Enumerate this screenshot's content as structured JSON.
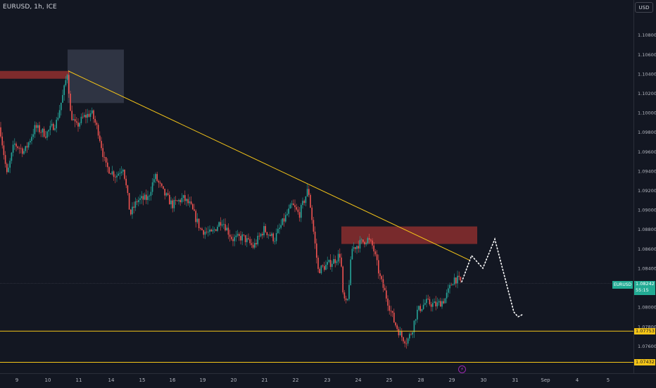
{
  "header": {
    "symbol_title": "EURUSD, 1h, ICE",
    "currency": "USD"
  },
  "symbol_tag": "EURUSD",
  "current_price": {
    "price": "1.08242",
    "countdown": "55:15",
    "value": 1.08242,
    "color": "#22ab94"
  },
  "levels": [
    {
      "label": "1.07753",
      "value": 1.07753,
      "color": "#f5c518"
    },
    {
      "label": "1.07432",
      "value": 1.07432,
      "color": "#f5c518"
    }
  ],
  "price_axis": {
    "ticks": [
      "1.10800",
      "1.10600",
      "1.10400",
      "1.10200",
      "1.10000",
      "1.09800",
      "1.09600",
      "1.09400",
      "1.09200",
      "1.09000",
      "1.08800",
      "1.08600",
      "1.08400",
      "1.08000",
      "1.07800",
      "1.07600"
    ],
    "range": [
      1.0732,
      1.1116
    ]
  },
  "time_axis": {
    "labels": [
      "9",
      "10",
      "11",
      "14",
      "15",
      "16",
      "19",
      "20",
      "21",
      "22",
      "23",
      "24",
      "25",
      "28",
      "29",
      "30",
      "31",
      "Sep",
      "4",
      "5"
    ]
  },
  "drawings": {
    "trendline": {
      "from": [
        "10 Aug",
        1.1043
      ],
      "to": [
        "29 Aug",
        1.0848
      ],
      "color": "#f5c518"
    },
    "supply_zones": [
      {
        "name": "upper-zone",
        "top": 1.1043,
        "bottom": 1.1035,
        "color": "#8b2e2e"
      },
      {
        "name": "lower-zone",
        "top": 1.0883,
        "bottom": 1.0865,
        "color": "#8b2e2e"
      }
    ],
    "highlight_box": {
      "top": 1.1065,
      "bottom": 1.101,
      "color": "#3a3f4f"
    },
    "projection": {
      "color": "#ffffff",
      "points": [
        1.0826,
        1.0853,
        1.084,
        1.087,
        1.0795,
        1.079,
        1.0793
      ]
    }
  },
  "icons": {
    "events": "lightning-icon"
  }
}
